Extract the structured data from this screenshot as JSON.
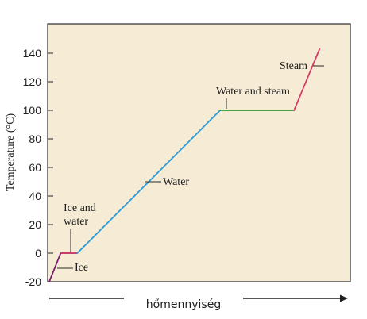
{
  "chart_data": {
    "type": "line",
    "xlabel": "hőmennyiség",
    "ylabel": "Temperature (°C)",
    "ylim": [
      -20,
      150
    ],
    "xlim": [
      0,
      100
    ],
    "yticks": [
      -20,
      0,
      20,
      40,
      60,
      80,
      100,
      120,
      140
    ],
    "series": [
      {
        "name": "Ice",
        "color": "#7a1f6a",
        "points": [
          [
            0,
            -20
          ],
          [
            4.5,
            0
          ]
        ]
      },
      {
        "name": "Ice and water",
        "color": "#c0265e",
        "points": [
          [
            4.5,
            0
          ],
          [
            11,
            0
          ]
        ]
      },
      {
        "name": "Water",
        "color": "#2a9ad6",
        "points": [
          [
            11,
            0
          ],
          [
            67,
            100
          ]
        ]
      },
      {
        "name": "Water and steam",
        "color": "#2e9a3a",
        "points": [
          [
            67,
            100
          ],
          [
            96,
            100
          ]
        ]
      },
      {
        "name": "Steam",
        "color": "#d93a63",
        "points": [
          [
            96,
            100
          ],
          [
            106,
            143
          ]
        ]
      }
    ],
    "annotations": [
      {
        "id": "ice",
        "text": "Ice"
      },
      {
        "id": "ice-water-1",
        "text": "Ice and"
      },
      {
        "id": "ice-water-2",
        "text": "water"
      },
      {
        "id": "water",
        "text": "Water"
      },
      {
        "id": "water-steam",
        "text": "Water and steam"
      },
      {
        "id": "steam",
        "text": "Steam"
      }
    ]
  }
}
